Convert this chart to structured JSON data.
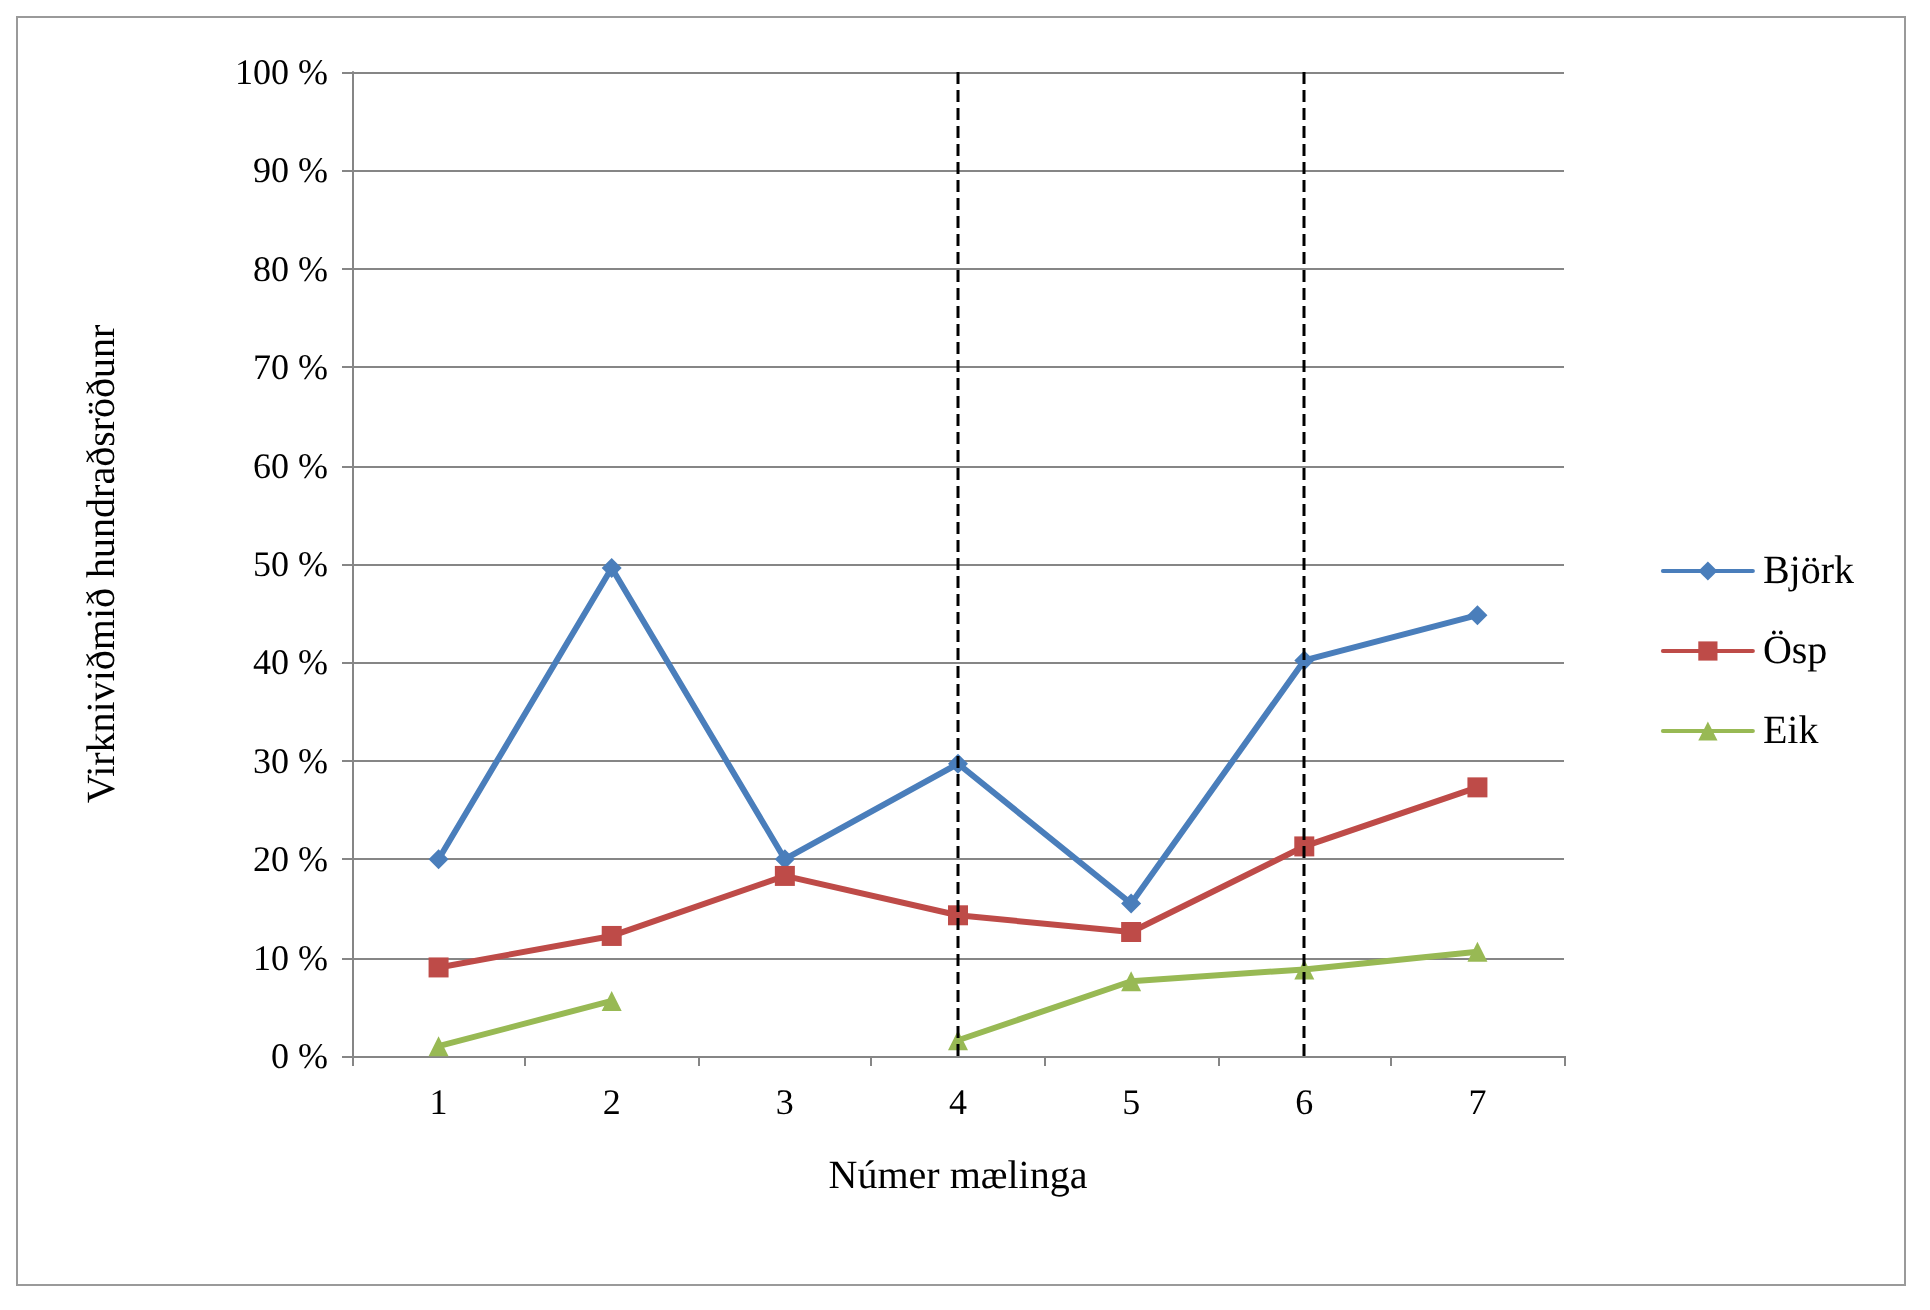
{
  "chart_data": {
    "type": "line",
    "xlabel": "Númer mælinga",
    "ylabel": "Virkniviðmið hundraðsröðunr",
    "categories": [
      "1",
      "2",
      "3",
      "4",
      "5",
      "6",
      "7"
    ],
    "series": [
      {
        "name": "Björk",
        "color": "#4a7ebb",
        "marker": "diamond",
        "values": [
          20,
          49.6,
          20,
          29.7,
          15.5,
          40.2,
          44.8
        ]
      },
      {
        "name": "Ösp",
        "color": "#be4b48",
        "marker": "square",
        "values": [
          9,
          12.2,
          18.3,
          14.3,
          12.6,
          21.3,
          27.3
        ]
      },
      {
        "name": "Eik",
        "color": "#98b954",
        "marker": "triangle",
        "values": [
          1,
          5.6,
          null,
          1.6,
          7.6,
          8.8,
          10.6
        ]
      }
    ],
    "ylim": [
      0,
      100
    ],
    "yticks": [
      {
        "value": 0,
        "label": "0 %"
      },
      {
        "value": 10,
        "label": "10 %"
      },
      {
        "value": 20,
        "label": "20 %"
      },
      {
        "value": 30,
        "label": "30 %"
      },
      {
        "value": 40,
        "label": "40 %"
      },
      {
        "value": 50,
        "label": "50 %"
      },
      {
        "value": 60,
        "label": "60 %"
      },
      {
        "value": 70,
        "label": "70 %"
      },
      {
        "value": 80,
        "label": "80 %"
      },
      {
        "value": 90,
        "label": "90 %"
      },
      {
        "value": 100,
        "label": "100 %"
      }
    ],
    "grid": "y",
    "legend": "right",
    "line_style": "solid",
    "ref_lines": [
      {
        "axis": "x",
        "value": "4",
        "color": "#000000",
        "line_style": "dashed"
      },
      {
        "axis": "x",
        "value": "6",
        "color": "#000000",
        "line_style": "dashed"
      }
    ]
  }
}
